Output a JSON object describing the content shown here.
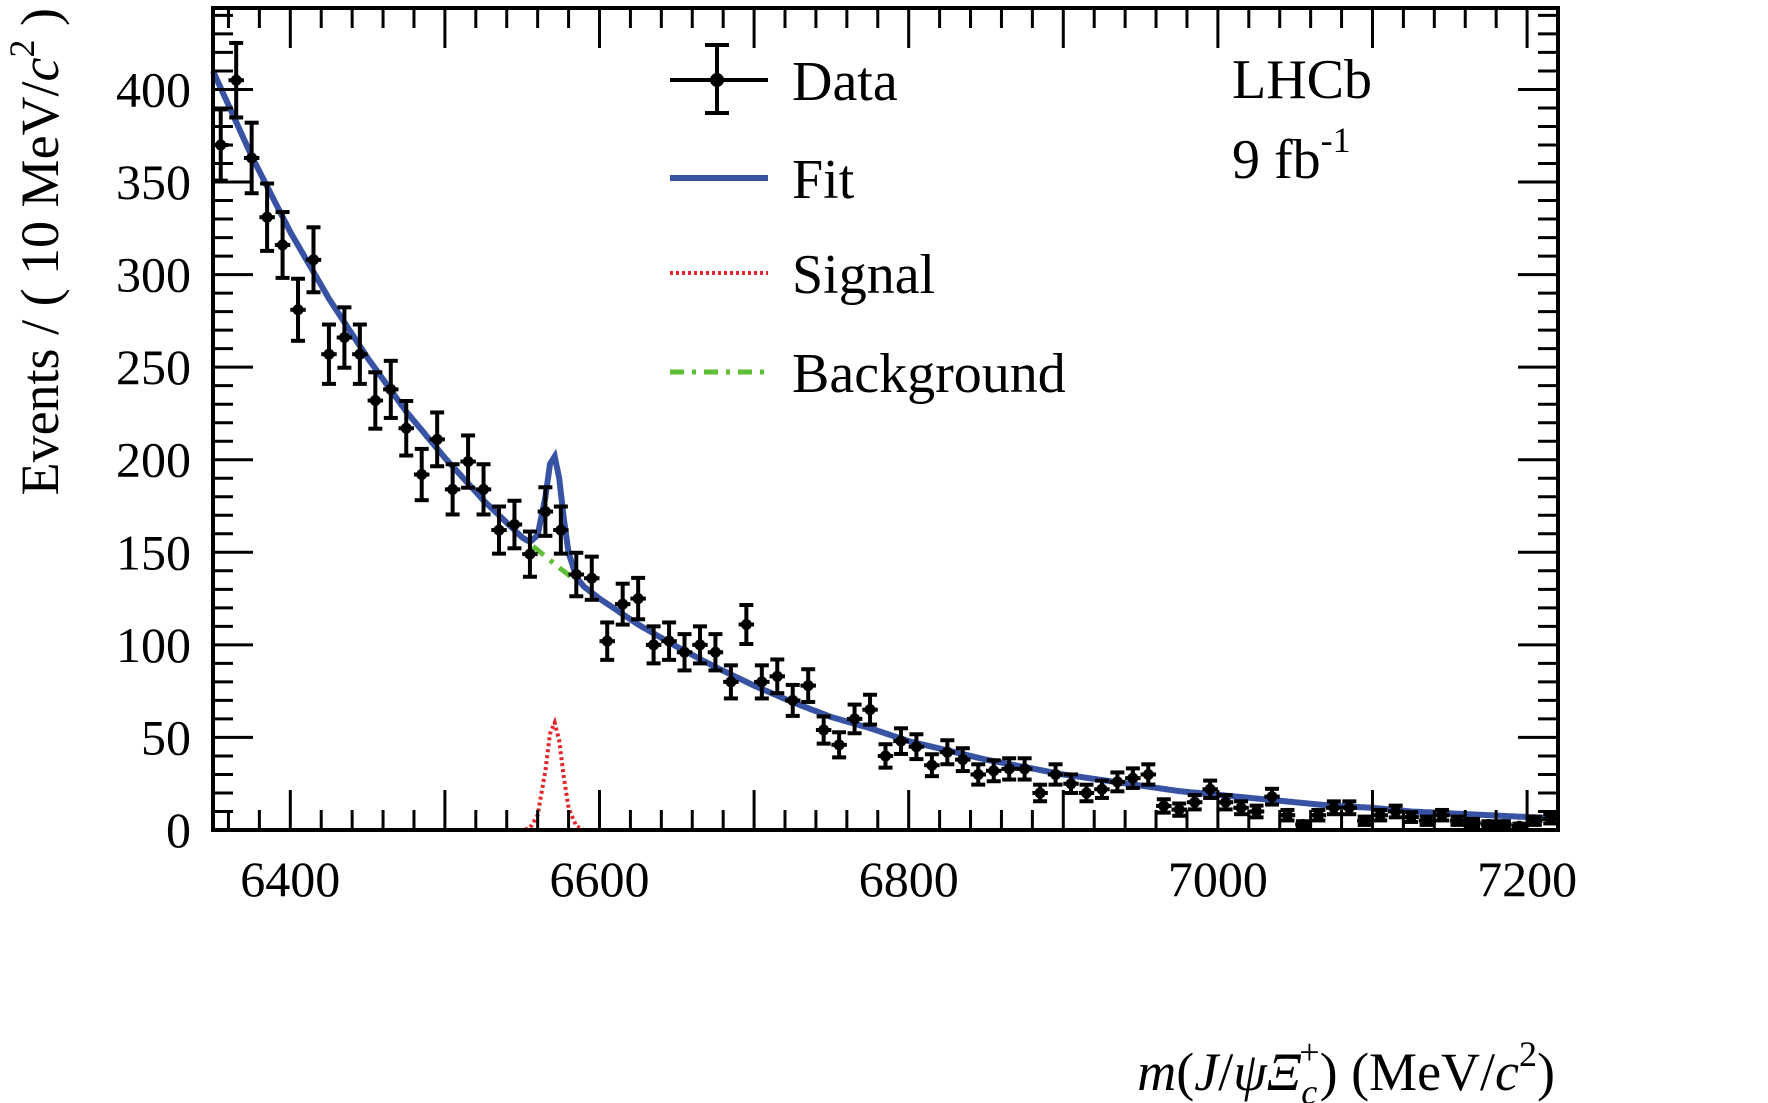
{
  "chart_data": {
    "type": "scatter",
    "title": "",
    "xlabel_parts": [
      "m",
      "(",
      "J",
      "/",
      "ψ",
      "Ξ",
      "c",
      "+",
      ")",
      " (MeV/",
      "c",
      "2",
      ")"
    ],
    "ylabel_parts": [
      "Events / ( 10 MeV/",
      "c",
      "2",
      " )"
    ],
    "xlim": [
      6350,
      7220
    ],
    "ylim": [
      0,
      444
    ],
    "xticks": [
      6400,
      6600,
      6800,
      7000,
      7200
    ],
    "xtick_labels": [
      "6400",
      "6600",
      "6800",
      "7000",
      "7200"
    ],
    "yticks": [
      0,
      50,
      100,
      150,
      200,
      250,
      300,
      350,
      400
    ],
    "ytick_labels": [
      "0",
      "50",
      "100",
      "150",
      "200",
      "250",
      "300",
      "350",
      "400"
    ],
    "bin_width": 10,
    "grid": false,
    "legend_position": "top-center",
    "legend": [
      "Data",
      "Fit",
      "Signal",
      "Background"
    ],
    "annotations": {
      "experiment": "LHCb",
      "lumi_value": "9 fb",
      "lumi_exp": "-1"
    },
    "colors": {
      "data": "#000000",
      "fit": "#3853a4",
      "signal": "#e3262b",
      "background": "#5cbf35"
    },
    "series": [
      {
        "name": "Data",
        "style": "points-with-errorbars",
        "x": [
          6355,
          6365,
          6375,
          6385,
          6395,
          6405,
          6415,
          6425,
          6435,
          6445,
          6455,
          6465,
          6475,
          6485,
          6495,
          6505,
          6515,
          6525,
          6535,
          6545,
          6555,
          6565,
          6575,
          6585,
          6595,
          6605,
          6615,
          6625,
          6635,
          6645,
          6655,
          6665,
          6675,
          6685,
          6695,
          6705,
          6715,
          6725,
          6735,
          6745,
          6755,
          6765,
          6775,
          6785,
          6795,
          6805,
          6815,
          6825,
          6835,
          6845,
          6855,
          6865,
          6875,
          6885,
          6895,
          6905,
          6915,
          6925,
          6935,
          6945,
          6955,
          6965,
          6975,
          6985,
          6995,
          7005,
          7015,
          7025,
          7035,
          7045,
          7055,
          7065,
          7075,
          7085,
          7095,
          7105,
          7115,
          7125,
          7135,
          7145,
          7155,
          7165,
          7175,
          7185,
          7195,
          7205,
          7215
        ],
        "y": [
          370,
          405,
          363,
          331,
          316,
          281,
          308,
          257,
          266,
          257,
          232,
          238,
          217,
          192,
          211,
          184,
          199,
          184,
          162,
          165,
          149,
          172,
          162,
          138,
          136,
          102,
          122,
          125,
          100,
          102,
          96,
          100,
          96,
          80,
          111,
          80,
          83,
          70,
          78,
          54,
          46,
          60,
          65,
          40,
          48,
          45,
          35,
          42,
          38,
          30,
          32,
          33,
          33,
          20,
          30,
          25,
          20,
          22,
          26,
          28,
          30,
          13,
          11,
          15,
          22,
          15,
          12,
          10,
          18,
          8,
          3,
          8,
          12,
          12,
          5,
          8,
          10,
          7,
          5,
          8,
          5,
          4,
          3,
          3,
          2,
          5,
          6
        ]
      },
      {
        "name": "Background",
        "style": "dash-dot",
        "x": [
          6350,
          6375,
          6400,
          6425,
          6450,
          6475,
          6500,
          6525,
          6550,
          6575,
          6600,
          6625,
          6650,
          6675,
          6700,
          6725,
          6750,
          6775,
          6800,
          6825,
          6850,
          6875,
          6900,
          6925,
          6950,
          6975,
          7000,
          7025,
          7050,
          7075,
          7100,
          7125,
          7150,
          7175,
          7200,
          7225
        ],
        "y": [
          410,
          364,
          323,
          287,
          255,
          226,
          201,
          178,
          158,
          141,
          125,
          111,
          99,
          88,
          78,
          69,
          61,
          55,
          48,
          43,
          38,
          34,
          30,
          27,
          24,
          21,
          19,
          17,
          15,
          13,
          12,
          10,
          9,
          8,
          7,
          6
        ]
      },
      {
        "name": "Signal",
        "style": "dotted",
        "x": [
          6350,
          6550,
          6555,
          6560,
          6565,
          6568,
          6571,
          6574,
          6577,
          6580,
          6585,
          6590,
          7220
        ],
        "y": [
          0,
          0,
          1,
          8,
          32,
          52,
          58,
          48,
          28,
          12,
          2,
          0,
          0
        ]
      },
      {
        "name": "Fit",
        "style": "solid",
        "note_sum": "Background + Signal"
      }
    ]
  }
}
